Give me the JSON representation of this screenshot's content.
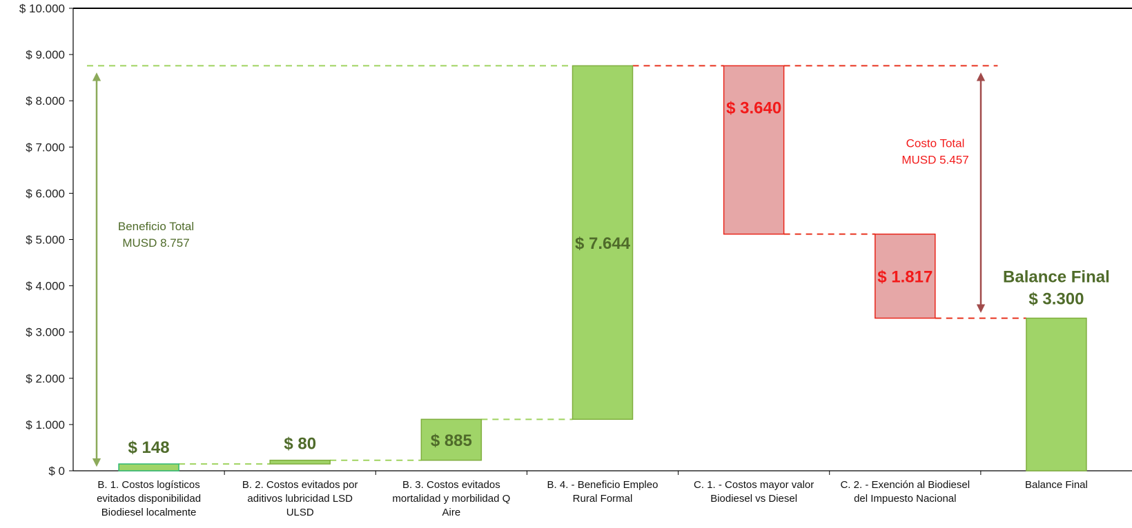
{
  "chart_data": {
    "type": "waterfall",
    "ylim": [
      0,
      10000
    ],
    "yticks": [
      0,
      1000,
      2000,
      3000,
      4000,
      5000,
      6000,
      7000,
      8000,
      9000,
      10000
    ],
    "ytick_labels": [
      "$ 0",
      "$ 1.000",
      "$ 2.000",
      "$ 3.000",
      "$ 4.000",
      "$ 5.000",
      "$ 6.000",
      "$ 7.000",
      "$ 8.000",
      "$ 9.000",
      "$ 10.000"
    ],
    "categories": [
      [
        "B. 1. Costos logísticos",
        "evitados disponibilidad",
        "Biodiesel localmente"
      ],
      [
        "B. 2. Costos evitados por",
        "aditivos lubricidad LSD",
        "ULSD"
      ],
      [
        "B. 3. Costos evitados",
        "mortalidad y morbilidad Q",
        "Aire"
      ],
      [
        "B. 4. - Beneficio Empleo",
        "Rural Formal"
      ],
      [
        "C. 1. - Costos mayor valor",
        "Biodiesel vs  Diesel"
      ],
      [
        "C. 2. - Exención al Biodiesel",
        "del Impuesto Nacional"
      ],
      [
        "Balance Final"
      ]
    ],
    "bars": [
      {
        "start": 0,
        "end": 148,
        "kind": "benefit",
        "label": "$ 148"
      },
      {
        "start": 148,
        "end": 228,
        "kind": "benefit",
        "label": "$ 80"
      },
      {
        "start": 228,
        "end": 1113,
        "kind": "benefit",
        "label": "$ 885"
      },
      {
        "start": 1113,
        "end": 8757,
        "kind": "benefit",
        "label": "$ 7.644"
      },
      {
        "start": 8757,
        "end": 5117,
        "kind": "cost",
        "label": "$ 3.640"
      },
      {
        "start": 5117,
        "end": 3300,
        "kind": "cost",
        "label": "$ 1.817"
      },
      {
        "start": 0,
        "end": 3300,
        "kind": "total",
        "label": "$ 3.300",
        "title": "Balance Final"
      }
    ],
    "annotations": {
      "benefit": {
        "lines": [
          "Beneficio Total",
          "MUSD 8.757"
        ],
        "from": 0,
        "to": 8757
      },
      "cost": {
        "lines": [
          "Costo Total",
          "MUSD 5.457"
        ],
        "from": 3300,
        "to": 8757
      }
    },
    "colors": {
      "benefit_fill": "#a0d468",
      "benefit_stroke": "#7fae3e",
      "bar1_stroke": "#2eb872",
      "cost_fill": "#e6a7a7",
      "cost_stroke": "#e8261b",
      "benefit_text": "#4f6b2a",
      "cost_text": "#f21a1a",
      "benefit_dash": "#9fd35f",
      "cost_dash": "#e8331f",
      "benefit_arrow": "#8caa5a",
      "cost_arrow": "#a14b4b",
      "axis": "#000000"
    }
  }
}
